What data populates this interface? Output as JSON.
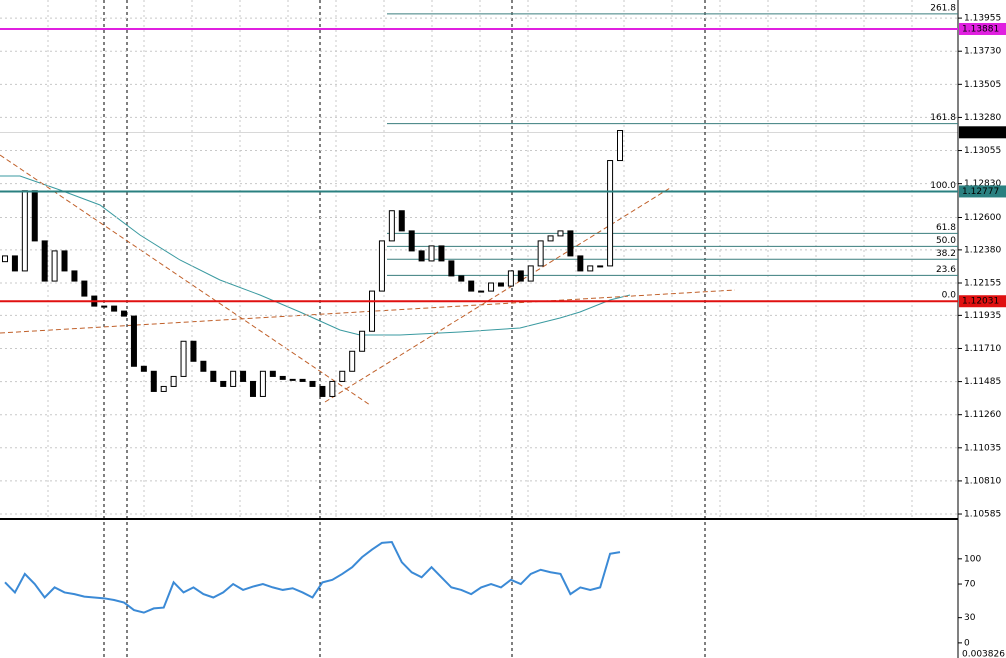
{
  "chart_data": [
    {
      "type": "candlestick",
      "open": [
        1.123,
        1.12339,
        1.12237,
        1.12782,
        1.12441,
        1.12168,
        1.12373,
        1.12237,
        1.12168,
        1.12066,
        1.11998,
        1.11998,
        1.11964,
        1.1193,
        1.11589,
        1.11555,
        1.11418,
        1.11452,
        1.1152,
        1.11759,
        1.11623,
        1.11555,
        1.11486,
        1.11452,
        1.11555,
        1.11486,
        1.11384,
        1.11555,
        1.1152,
        1.115,
        1.115,
        1.11486,
        1.11452,
        1.11384,
        1.11486,
        1.11555,
        1.11691,
        1.11827,
        1.121,
        1.12441,
        1.12646,
        1.12509,
        1.12373,
        1.12305,
        1.12407,
        1.12305,
        1.12203,
        1.12168,
        1.121,
        1.121,
        1.12155,
        1.12134,
        1.12237,
        1.12168,
        1.12271,
        1.12441,
        1.12475,
        1.12509,
        1.12339,
        1.12237,
        1.12271,
        1.12271,
        1.12987
      ],
      "close": [
        1.12339,
        1.12237,
        1.12782,
        1.12441,
        1.12168,
        1.12373,
        1.12237,
        1.12168,
        1.12066,
        1.11998,
        1.11998,
        1.11964,
        1.1193,
        1.11589,
        1.11555,
        1.11418,
        1.11452,
        1.1152,
        1.11759,
        1.11623,
        1.11555,
        1.11486,
        1.11452,
        1.11555,
        1.11486,
        1.11384,
        1.11555,
        1.1152,
        1.115,
        1.115,
        1.11486,
        1.11452,
        1.11384,
        1.11486,
        1.11555,
        1.11691,
        1.11827,
        1.121,
        1.12441,
        1.12646,
        1.12509,
        1.12373,
        1.12305,
        1.12407,
        1.12305,
        1.12203,
        1.12168,
        1.121,
        1.121,
        1.12155,
        1.12134,
        1.12237,
        1.12168,
        1.12271,
        1.12441,
        1.12475,
        1.12509,
        1.12339,
        1.12237,
        1.12271,
        1.12271,
        1.12987,
        1.13191
      ],
      "ylim": [
        1.10558,
        1.14078
      ],
      "yticks": [
        1.13955,
        {
          "value": 1.1373,
          "label": "1.13730"
        },
        1.13505,
        {
          "value": 1.1328,
          "label": "1.13280"
        },
        1.13055,
        {
          "value": 1.1283,
          "label": "1.12830"
        },
        {
          "value": 1.126,
          "label": "1.12600"
        },
        {
          "value": 1.1238,
          "label": "1.12380"
        },
        1.12155,
        1.11935,
        {
          "value": 1.1171,
          "label": "1.11710"
        },
        1.11485,
        {
          "value": 1.1126,
          "label": "1.11260"
        },
        1.11035,
        {
          "value": 1.1081,
          "label": "1.10810"
        },
        1.10585
      ],
      "levels": [
        {
          "value": 1.13881,
          "color": "#e020e0"
        },
        {
          "value": 1.13179,
          "color": "#000000"
        },
        {
          "value": 1.12777,
          "color": "#2a8080"
        },
        {
          "value": 1.12031,
          "color": "#e01010"
        }
      ],
      "fibonacci": [
        {
          "label": "261.8",
          "price": 1.13984
        },
        {
          "label": "161.8",
          "price": 1.13238
        },
        {
          "label": "100.0",
          "price": 1.12777
        },
        {
          "label": "61.8",
          "price": 1.12492
        },
        {
          "label": "50.0",
          "price": 1.12404
        },
        {
          "label": "38.2",
          "price": 1.12316
        },
        {
          "label": "23.6",
          "price": 1.12207
        },
        {
          "label": "0.0",
          "price": 1.12031
        }
      ],
      "grid": true
    },
    {
      "type": "line",
      "color": "#3b8ad6",
      "values": [
        72,
        60,
        82,
        70,
        54,
        66,
        60,
        58,
        55,
        54,
        53,
        51,
        48,
        39,
        36,
        41,
        42,
        72,
        60,
        66,
        58,
        54,
        60,
        70,
        63,
        67,
        70,
        66,
        63,
        65,
        60,
        54,
        72,
        75,
        82,
        90,
        102,
        111,
        119,
        120,
        96,
        84,
        78,
        90,
        78,
        66,
        63,
        58,
        66,
        70,
        66,
        75,
        70,
        82,
        87,
        84,
        82,
        58,
        66,
        63,
        66,
        106,
        108
      ],
      "ylim": [
        -18,
        145
      ],
      "yticks": [
        0,
        30,
        70,
        100
      ],
      "scale_label": "0.003826"
    }
  ]
}
